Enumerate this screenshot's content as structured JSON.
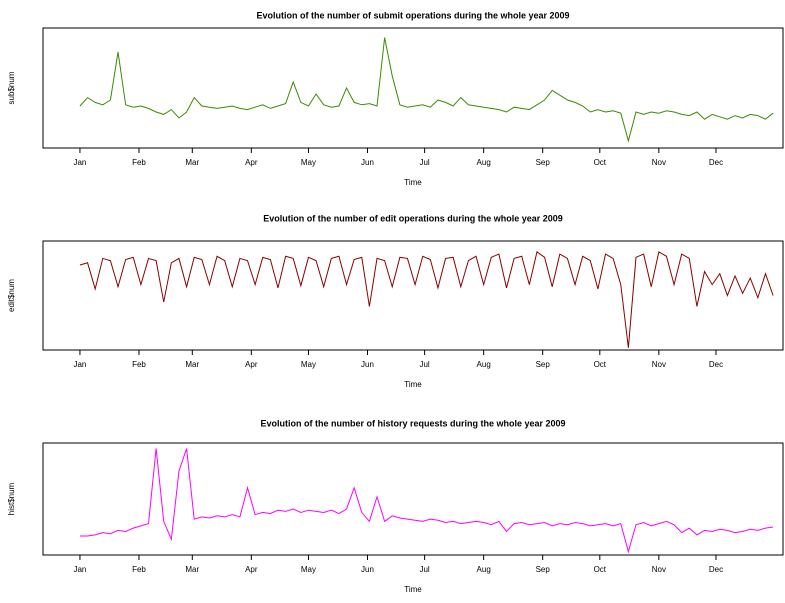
{
  "chart_data": [
    {
      "type": "line",
      "title": "Evolution of the number of submit operations during the whole year 2009",
      "xlabel": "Time",
      "ylabel": "sub$num",
      "color": "#3f8a00",
      "xlim": [
        -18.4,
        370.2
      ],
      "ylim": [
        0,
        100
      ],
      "xticks": [
        {
          "value": 1,
          "label": "Jan"
        },
        {
          "value": 32,
          "label": "Feb"
        },
        {
          "value": 60,
          "label": "Mar"
        },
        {
          "value": 91,
          "label": "Apr"
        },
        {
          "value": 121,
          "label": "May"
        },
        {
          "value": 152,
          "label": "Jun"
        },
        {
          "value": 182,
          "label": "Jul"
        },
        {
          "value": 213,
          "label": "Aug"
        },
        {
          "value": 244,
          "label": "Sep"
        },
        {
          "value": 274,
          "label": "Oct"
        },
        {
          "value": 305,
          "label": "Nov"
        },
        {
          "value": 335,
          "label": "Dec"
        }
      ],
      "x": [
        1,
        5,
        9,
        13,
        17,
        21,
        25,
        29,
        33,
        37,
        41,
        45,
        49,
        53,
        57,
        61,
        65,
        69,
        73,
        77,
        81,
        85,
        89,
        93,
        97,
        101,
        105,
        109,
        113,
        117,
        121,
        125,
        129,
        133,
        137,
        141,
        145,
        149,
        153,
        157,
        161,
        165,
        169,
        173,
        177,
        181,
        185,
        189,
        193,
        197,
        201,
        205,
        209,
        213,
        217,
        221,
        225,
        229,
        233,
        237,
        241,
        245,
        249,
        253,
        257,
        261,
        265,
        269,
        273,
        277,
        281,
        285,
        289,
        293,
        297,
        301,
        305,
        309,
        313,
        317,
        321,
        325,
        329,
        333,
        337,
        341,
        345,
        349,
        353,
        357,
        361,
        365
      ],
      "values": [
        35,
        42,
        38,
        36,
        40,
        80,
        36,
        34,
        35,
        33,
        30,
        28,
        32,
        25,
        30,
        42,
        35,
        34,
        33,
        34,
        35,
        33,
        32,
        34,
        36,
        33,
        35,
        37,
        55,
        38,
        35,
        45,
        36,
        34,
        35,
        50,
        38,
        36,
        37,
        35,
        92,
        60,
        36,
        34,
        35,
        36,
        34,
        40,
        38,
        35,
        42,
        36,
        35,
        34,
        33,
        32,
        30,
        34,
        33,
        32,
        36,
        40,
        48,
        44,
        40,
        38,
        35,
        30,
        32,
        30,
        31,
        29,
        6,
        30,
        28,
        30,
        29,
        31,
        30,
        28,
        27,
        30,
        24,
        28,
        26,
        24,
        27,
        25,
        28,
        27,
        24,
        29
      ]
    },
    {
      "type": "line",
      "title": "Evolution of the number of edit operations during the whole year 2009",
      "xlabel": "Time",
      "ylabel": "edit$num",
      "color": "#8b0000",
      "xlim": [
        -18.4,
        370.2
      ],
      "ylim": [
        0,
        100
      ],
      "xticks": [
        {
          "value": 1,
          "label": "Jan"
        },
        {
          "value": 32,
          "label": "Feb"
        },
        {
          "value": 60,
          "label": "Mar"
        },
        {
          "value": 91,
          "label": "Apr"
        },
        {
          "value": 121,
          "label": "May"
        },
        {
          "value": 152,
          "label": "Jun"
        },
        {
          "value": 182,
          "label": "Jul"
        },
        {
          "value": 213,
          "label": "Aug"
        },
        {
          "value": 244,
          "label": "Sep"
        },
        {
          "value": 274,
          "label": "Oct"
        },
        {
          "value": 305,
          "label": "Nov"
        },
        {
          "value": 335,
          "label": "Dec"
        }
      ],
      "x": [
        1,
        5,
        9,
        13,
        17,
        21,
        25,
        29,
        33,
        37,
        41,
        45,
        49,
        53,
        57,
        61,
        65,
        69,
        73,
        77,
        81,
        85,
        89,
        93,
        97,
        101,
        105,
        109,
        113,
        117,
        121,
        125,
        129,
        133,
        137,
        141,
        145,
        149,
        153,
        157,
        161,
        165,
        169,
        173,
        177,
        181,
        185,
        189,
        193,
        197,
        201,
        205,
        209,
        213,
        217,
        221,
        225,
        229,
        233,
        237,
        241,
        245,
        249,
        253,
        257,
        261,
        265,
        269,
        273,
        277,
        281,
        285,
        289,
        293,
        297,
        301,
        305,
        309,
        313,
        317,
        321,
        325,
        329,
        333,
        337,
        341,
        345,
        349,
        353,
        357,
        361,
        365
      ],
      "values": [
        78,
        80,
        56,
        84,
        82,
        58,
        83,
        85,
        60,
        84,
        82,
        44,
        80,
        84,
        58,
        85,
        83,
        60,
        86,
        82,
        58,
        84,
        82,
        60,
        85,
        83,
        57,
        86,
        84,
        59,
        85,
        82,
        58,
        84,
        86,
        60,
        83,
        85,
        40,
        84,
        82,
        58,
        85,
        84,
        60,
        86,
        83,
        57,
        84,
        85,
        58,
        82,
        86,
        60,
        85,
        88,
        57,
        84,
        86,
        60,
        90,
        85,
        58,
        88,
        84,
        60,
        86,
        82,
        56,
        88,
        84,
        60,
        2,
        85,
        88,
        58,
        90,
        86,
        60,
        88,
        84,
        40,
        72,
        60,
        70,
        50,
        68,
        52,
        66,
        48,
        70,
        50
      ]
    },
    {
      "type": "line",
      "title": "Evolution of the number of history requests during the whole year 2009",
      "xlabel": "Time",
      "ylabel": "hist$num",
      "color": "#ff00ff",
      "xlim": [
        -18.4,
        370.2
      ],
      "ylim": [
        0,
        100
      ],
      "xticks": [
        {
          "value": 1,
          "label": "Jan"
        },
        {
          "value": 32,
          "label": "Feb"
        },
        {
          "value": 60,
          "label": "Mar"
        },
        {
          "value": 91,
          "label": "Apr"
        },
        {
          "value": 121,
          "label": "May"
        },
        {
          "value": 152,
          "label": "Jun"
        },
        {
          "value": 182,
          "label": "Jul"
        },
        {
          "value": 213,
          "label": "Aug"
        },
        {
          "value": 244,
          "label": "Sep"
        },
        {
          "value": 274,
          "label": "Oct"
        },
        {
          "value": 305,
          "label": "Nov"
        },
        {
          "value": 335,
          "label": "Dec"
        }
      ],
      "x": [
        1,
        5,
        9,
        13,
        17,
        21,
        25,
        29,
        33,
        37,
        41,
        45,
        49,
        53,
        57,
        61,
        65,
        69,
        73,
        77,
        81,
        85,
        89,
        93,
        97,
        101,
        105,
        109,
        113,
        117,
        121,
        125,
        129,
        133,
        137,
        141,
        145,
        149,
        153,
        157,
        161,
        165,
        169,
        173,
        177,
        181,
        185,
        189,
        193,
        197,
        201,
        205,
        209,
        213,
        217,
        221,
        225,
        229,
        233,
        237,
        241,
        245,
        249,
        253,
        257,
        261,
        265,
        269,
        273,
        277,
        281,
        285,
        289,
        293,
        297,
        301,
        305,
        309,
        313,
        317,
        321,
        325,
        329,
        333,
        337,
        341,
        345,
        349,
        353,
        357,
        361,
        365
      ],
      "values": [
        17,
        17,
        18,
        20,
        19,
        22,
        21,
        24,
        26,
        28,
        95,
        30,
        14,
        75,
        95,
        32,
        34,
        33,
        35,
        34,
        36,
        34,
        60,
        36,
        38,
        37,
        40,
        39,
        41,
        38,
        40,
        39,
        38,
        40,
        37,
        41,
        60,
        38,
        30,
        52,
        30,
        35,
        33,
        32,
        31,
        30,
        32,
        31,
        29,
        30,
        28,
        29,
        30,
        29,
        27,
        30,
        21,
        28,
        29,
        27,
        28,
        29,
        26,
        28,
        27,
        29,
        28,
        26,
        27,
        28,
        26,
        28,
        3,
        27,
        29,
        26,
        28,
        30,
        27,
        20,
        24,
        18,
        22,
        21,
        23,
        22,
        20,
        21,
        23,
        22,
        24,
        25
      ]
    }
  ]
}
